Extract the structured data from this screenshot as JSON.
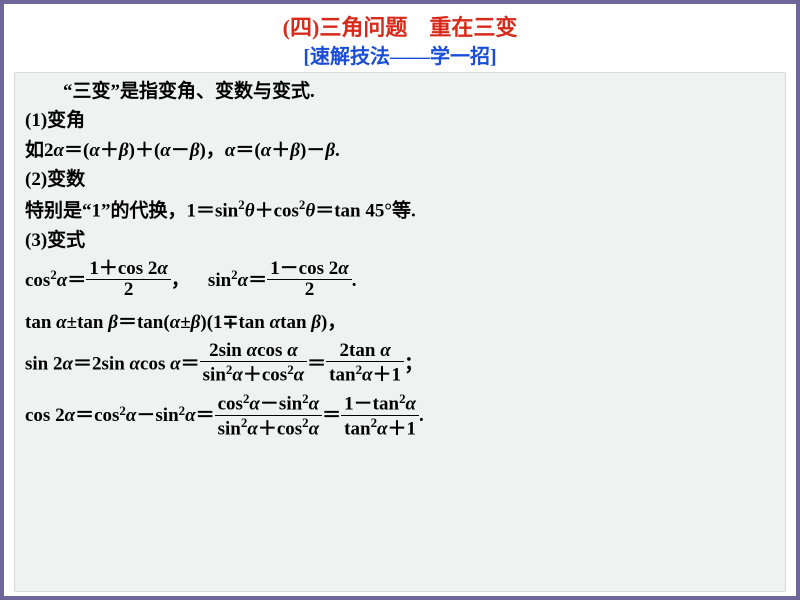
{
  "titles": {
    "main": "(四)三角问题　重在三变",
    "sub": "[速解技法——学一招]",
    "main_color": "#d82a1a",
    "sub_color": "#1a4ed8",
    "main_fontsize": 22,
    "sub_fontsize": 20
  },
  "content_box": {
    "background": "#eef2f1",
    "border_color": "#d5dbd9",
    "text_color": "#000000",
    "fontsize": 19
  },
  "labels": {
    "intro": "“三变”是指变角、变数与变式.",
    "h1": "(1)变角",
    "line1_a": "如2",
    "line1_b": "＝(",
    "line1_c": "＋",
    "line1_d": ")＋(",
    "line1_e": "－",
    "line1_f": ")，",
    "line1_g": "＝(",
    "line1_h": "＋",
    "line1_i": ")－",
    "line1_j": ".",
    "h2": "(2)变数",
    "line2_a": "特别是“1”的代换，1＝sin",
    "line2_b": "＋cos",
    "line2_c": "＝tan 45°等.",
    "h3": "(3)变式",
    "sq": "2",
    "alpha": "α",
    "beta": "β",
    "theta": "θ",
    "cos_sq_a": "cos",
    "eq": "＝",
    "comma": "，",
    "period": ".",
    "semicolon": "；",
    "sin_sq_a": "sin",
    "frac1_num": "1＋cos 2",
    "frac1_den": "2",
    "frac2_num": "1－cos 2",
    "frac2_den": "2",
    "tan_line_a": "tan ",
    "tan_line_b": "±tan ",
    "tan_line_c": "＝tan(",
    "tan_line_d": "±",
    "tan_line_e": ")(1∓tan ",
    "tan_line_f": "tan ",
    "tan_line_g": ")，",
    "sin2_a": "sin 2",
    "sin2_b": "＝2sin ",
    "sin2_c": "cos ",
    "sin2_d": "＝",
    "frac3_num_a": "2sin ",
    "frac3_num_b": "cos ",
    "frac3_den_a": "sin",
    "frac3_den_b": "＋cos",
    "frac4_num_a": "2tan ",
    "frac4_den_a": "tan",
    "frac4_den_b": "＋1",
    "cos2_a": "cos 2",
    "cos2_b": "＝cos",
    "cos2_c": "－sin",
    "cos2_d": "＝",
    "frac5_num_a": "cos",
    "frac5_num_b": "－sin",
    "frac5_den_a": "sin",
    "frac5_den_b": "＋cos",
    "frac6_num_a": "1－tan",
    "frac6_den_a": "tan",
    "frac6_den_b": "＋1"
  }
}
